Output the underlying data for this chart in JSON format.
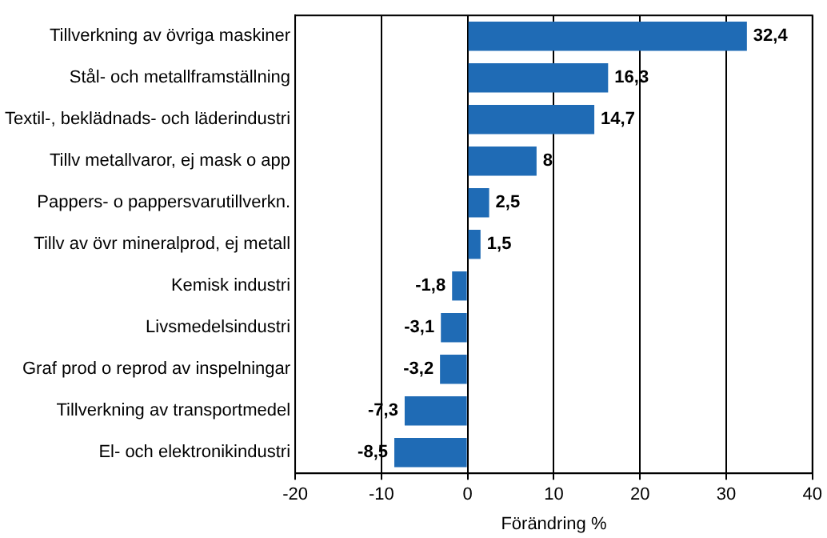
{
  "chart_data": {
    "type": "bar",
    "orientation": "horizontal",
    "xlabel": "Förändring %",
    "categories": [
      "Tillverkning av övriga maskiner",
      "Stål- och metallframställning",
      "Textil-, beklädnads- och läderindustri",
      "Tillv metallvaror, ej mask o app",
      "Pappers- o pappersvarutillverkn.",
      "Tillv av övr mineralprod, ej metall",
      "Kemisk industri",
      "Livsmedelsindustri",
      "Graf prod o reprod av inspelningar",
      "Tillverkning av transportmedel",
      "El- och elektronikindustri"
    ],
    "values": [
      32.4,
      16.3,
      14.7,
      8,
      2.5,
      1.5,
      -1.8,
      -3.1,
      -3.2,
      -7.3,
      -8.5
    ],
    "value_labels": [
      "32,4",
      "16,3",
      "14,7",
      "8",
      "2,5",
      "1,5",
      "-1,8",
      "-3,1",
      "-3,2",
      "-7,3",
      "-8,5"
    ],
    "color": "#1f6bb5",
    "xlim": [
      -20,
      40
    ],
    "xticks": [
      -20,
      -10,
      0,
      10,
      20,
      30,
      40
    ],
    "grid": "x",
    "legend": false
  }
}
